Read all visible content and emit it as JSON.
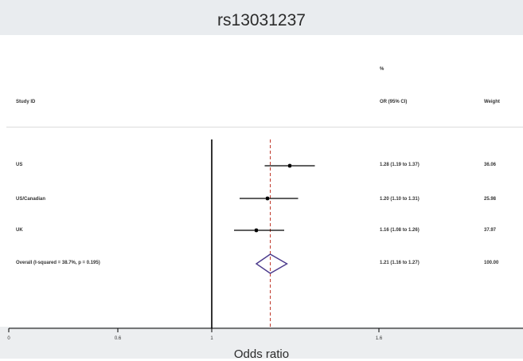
{
  "chart_data": {
    "type": "forest",
    "title": "rs13031237",
    "columns": {
      "study": "Study ID",
      "or": "OR (95% CI)",
      "weight_top": "%",
      "weight": "Weight"
    },
    "xlabel": "Odds ratio",
    "x_ticks": [
      "0",
      "0.6",
      "1",
      "1.6"
    ],
    "xlim": [
      0,
      1.9
    ],
    "null_line": 1,
    "overall_line": 1.21,
    "studies": [
      {
        "label": "US",
        "or": 1.28,
        "lo": 1.19,
        "hi": 1.37,
        "ci_text": "1.28 (1.19 to 1.37)",
        "weight_text": "36.06"
      },
      {
        "label": "US/Canadian",
        "or": 1.2,
        "lo": 1.1,
        "hi": 1.31,
        "ci_text": "1.20 (1.10 to 1.31)",
        "weight_text": "25.98"
      },
      {
        "label": "UK",
        "or": 1.16,
        "lo": 1.08,
        "hi": 1.26,
        "ci_text": "1.16 (1.08 to 1.26)",
        "weight_text": "37.97"
      }
    ],
    "overall": {
      "label": "Overall (I-squared = 38.7%, p = 0.195)",
      "or": 1.21,
      "lo": 1.16,
      "hi": 1.27,
      "ci_text": "1.21 (1.16 to 1.27)",
      "weight_text": "100.00"
    },
    "colors": {
      "diamond": "#4b3a8c",
      "overall_line": "#c0392b",
      "marker": "#000000"
    }
  }
}
